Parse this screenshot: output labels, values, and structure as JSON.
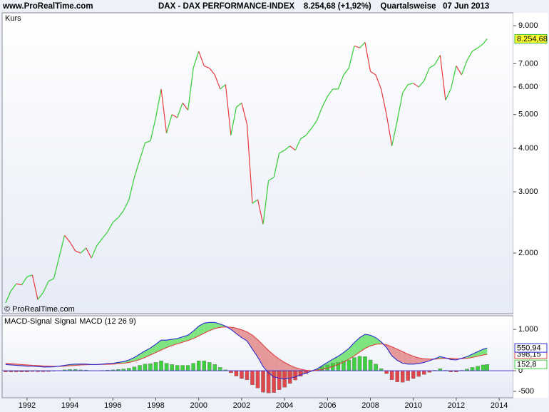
{
  "chart_data": [
    {
      "type": "line",
      "source": "www.ProRealTime.com",
      "title": "DAX - DAX PERFORMANCE-INDEX    8.254,68 (+1,92%)    Quartalsweise   07 Jun 2013",
      "watermark": "© ProRealTime.com",
      "log_scale": true,
      "xlim": [
        1990.84,
        2014.66
      ],
      "ylim": [
        1340,
        9800
      ],
      "yticks": [
        {
          "value": 2000,
          "label": "2.000"
        },
        {
          "value": 3000,
          "label": "3.000"
        },
        {
          "value": 4000,
          "label": "4.000"
        },
        {
          "value": 5000,
          "label": "5.000"
        },
        {
          "value": 6000,
          "label": "6.000"
        },
        {
          "value": 7000,
          "label": "7.000"
        },
        {
          "value": 9000,
          "label": "9.000"
        }
      ],
      "x": [
        1991,
        1991.25,
        1991.5,
        1991.75,
        1992,
        1992.25,
        1992.5,
        1992.75,
        1993,
        1993.25,
        1993.5,
        1993.75,
        1994,
        1994.25,
        1994.5,
        1994.75,
        1995,
        1995.25,
        1995.5,
        1995.75,
        1996,
        1996.25,
        1996.5,
        1996.75,
        1997,
        1997.25,
        1997.5,
        1997.75,
        1998,
        1998.25,
        1998.5,
        1998.75,
        1999,
        1999.25,
        1999.5,
        1999.75,
        2000,
        2000.25,
        2000.5,
        2000.75,
        2001,
        2001.25,
        2001.5,
        2001.75,
        2002,
        2002.25,
        2002.5,
        2002.75,
        2003,
        2003.25,
        2003.5,
        2003.75,
        2004,
        2004.25,
        2004.5,
        2004.75,
        2005,
        2005.25,
        2005.5,
        2005.75,
        2006,
        2006.25,
        2006.5,
        2006.75,
        2007,
        2007.25,
        2007.5,
        2007.75,
        2008,
        2008.25,
        2008.5,
        2008.75,
        2009,
        2009.25,
        2009.5,
        2009.75,
        2010,
        2010.25,
        2010.5,
        2010.75,
        2011,
        2011.25,
        2011.5,
        2011.75,
        2012,
        2012.25,
        2012.5,
        2012.75,
        2013,
        2013.25,
        2013.44
      ],
      "series": [
        {
          "name": "Kurs",
          "color": "#33bb33",
          "up_color": "#33cc33",
          "down_color": "#e8383d",
          "label_box_color": "#ffff33",
          "values": [
            1437,
            1557,
            1633,
            1620,
            1710,
            1730,
            1470,
            1540,
            1660,
            1690,
            1950,
            2250,
            2150,
            2030,
            2000,
            2070,
            1935,
            2100,
            2200,
            2300,
            2450,
            2530,
            2650,
            2850,
            3300,
            3700,
            4150,
            4200,
            4900,
            5920,
            4420,
            5000,
            4900,
            5400,
            5150,
            6810,
            7600,
            6900,
            6800,
            6500,
            5920,
            6100,
            4360,
            5250,
            5400,
            4690,
            2780,
            2850,
            2420,
            3230,
            3300,
            3870,
            3950,
            4060,
            3950,
            4260,
            4360,
            4560,
            4800,
            5250,
            5640,
            5920,
            5920,
            6500,
            6810,
            7880,
            7770,
            8060,
            6650,
            6500,
            5920,
            5000,
            4060,
            4800,
            5770,
            6100,
            6150,
            6000,
            6250,
            6810,
            6960,
            7400,
            5500,
            5920,
            6900,
            6500,
            7150,
            7600,
            7770,
            7980,
            8254.68
          ],
          "value_labels": [
            null,
            null,
            null,
            null,
            null,
            null,
            null,
            null,
            null,
            null,
            null,
            null,
            null,
            null,
            null,
            null,
            null,
            null,
            null,
            null,
            null,
            null,
            null,
            null,
            null,
            null,
            null,
            null,
            null,
            null,
            null,
            null,
            null,
            null,
            null,
            null,
            null,
            null,
            null,
            null,
            null,
            null,
            null,
            null,
            null,
            null,
            null,
            null,
            null,
            null,
            null,
            null,
            null,
            null,
            null,
            null,
            null,
            null,
            null,
            null,
            null,
            null,
            null,
            null,
            null,
            null,
            null,
            null,
            null,
            null,
            null,
            null,
            null,
            null,
            null,
            null,
            null,
            null,
            null,
            null,
            null,
            null,
            null,
            null,
            null,
            null,
            null,
            null,
            null,
            null,
            "8.254,68"
          ]
        }
      ]
    },
    {
      "type": "combo",
      "xlim": [
        1990.84,
        2014.66
      ],
      "xticks": [
        1992,
        1994,
        1996,
        1998,
        2000,
        2002,
        2004,
        2006,
        2008,
        2010,
        2012,
        2014
      ],
      "ylim": [
        -655,
        1330
      ],
      "yticks": [
        {
          "value": 1000,
          "label": "1.000"
        },
        0,
        -500
      ],
      "fill_up": "#55dd55",
      "fill_down": "#e07a7a",
      "x": [
        1991,
        1991.25,
        1991.5,
        1991.75,
        1992,
        1992.25,
        1992.5,
        1992.75,
        1993,
        1993.25,
        1993.5,
        1993.75,
        1994,
        1994.25,
        1994.5,
        1994.75,
        1995,
        1995.25,
        1995.5,
        1995.75,
        1996,
        1996.25,
        1996.5,
        1996.75,
        1997,
        1997.25,
        1997.5,
        1997.75,
        1998,
        1998.25,
        1998.5,
        1998.75,
        1999,
        1999.25,
        1999.5,
        1999.75,
        2000,
        2000.25,
        2000.5,
        2000.75,
        2001,
        2001.25,
        2001.5,
        2001.75,
        2002,
        2002.25,
        2002.5,
        2002.75,
        2003,
        2003.25,
        2003.5,
        2003.75,
        2004,
        2004.25,
        2004.5,
        2004.75,
        2005,
        2005.25,
        2005.5,
        2005.75,
        2006,
        2006.25,
        2006.5,
        2006.75,
        2007,
        2007.25,
        2007.5,
        2007.75,
        2008,
        2008.25,
        2008.5,
        2008.75,
        2009,
        2009.25,
        2009.5,
        2009.75,
        2010,
        2010.25,
        2010.5,
        2010.75,
        2011,
        2011.25,
        2011.5,
        2011.75,
        2012,
        2012.25,
        2012.5,
        2012.75,
        2013,
        2013.25,
        2013.44
      ],
      "series": [
        {
          "name": "MACD-Signal",
          "type": "bar",
          "color": "#3fcf3f",
          "negative_color": "#e0474c",
          "values": [
            -30,
            -30,
            -30,
            -30,
            -30,
            -20,
            -25,
            -25,
            -20,
            -10,
            5,
            20,
            30,
            30,
            20,
            15,
            2,
            0,
            8,
            15,
            20,
            30,
            40,
            60,
            90,
            130,
            160,
            170,
            200,
            240,
            180,
            150,
            130,
            130,
            130,
            180,
            240,
            240,
            200,
            150,
            80,
            20,
            -50,
            -130,
            -190,
            -220,
            -340,
            -420,
            -520,
            -540,
            -530,
            -460,
            -400,
            -310,
            -225,
            -135,
            -70,
            -10,
            30,
            90,
            140,
            180,
            200,
            230,
            260,
            320,
            350,
            340,
            260,
            160,
            50,
            -70,
            -220,
            -270,
            -280,
            -240,
            -190,
            -140,
            -90,
            -40,
            10,
            50,
            10,
            -30,
            -30,
            10,
            40,
            80,
            110,
            140,
            152.8
          ],
          "value_labels": [
            null,
            null,
            null,
            null,
            null,
            null,
            null,
            null,
            null,
            null,
            null,
            null,
            null,
            null,
            null,
            null,
            null,
            null,
            null,
            null,
            null,
            null,
            null,
            null,
            null,
            null,
            null,
            null,
            null,
            null,
            null,
            null,
            null,
            null,
            null,
            null,
            null,
            null,
            null,
            null,
            null,
            null,
            null,
            null,
            null,
            null,
            null,
            null,
            null,
            null,
            null,
            null,
            null,
            null,
            null,
            null,
            null,
            null,
            null,
            null,
            null,
            null,
            null,
            null,
            null,
            null,
            null,
            null,
            null,
            null,
            null,
            null,
            null,
            null,
            null,
            null,
            null,
            null,
            null,
            null,
            null,
            null,
            null,
            null,
            null,
            null,
            null,
            null,
            null,
            null,
            "152,8"
          ]
        },
        {
          "name": "Signal",
          "type": "line",
          "color": "#e04040",
          "values": [
            180,
            170,
            160,
            150,
            140,
            130,
            125,
            115,
            110,
            105,
            105,
            110,
            120,
            130,
            140,
            145,
            148,
            150,
            152,
            155,
            160,
            170,
            180,
            200,
            230,
            270,
            320,
            380,
            440,
            500,
            560,
            610,
            650,
            690,
            730,
            780,
            840,
            910,
            970,
            1020,
            1050,
            1060,
            1050,
            1030,
            990,
            940,
            860,
            750,
            620,
            490,
            380,
            280,
            200,
            130,
            75,
            35,
            10,
            0,
            10,
            30,
            60,
            100,
            150,
            210,
            280,
            360,
            450,
            540,
            600,
            640,
            650,
            630,
            580,
            520,
            460,
            400,
            350,
            310,
            290,
            280,
            280,
            290,
            300,
            300,
            290,
            290,
            300,
            320,
            350,
            380,
            398.15
          ],
          "value_labels": [
            null,
            null,
            null,
            null,
            null,
            null,
            null,
            null,
            null,
            null,
            null,
            null,
            null,
            null,
            null,
            null,
            null,
            null,
            null,
            null,
            null,
            null,
            null,
            null,
            null,
            null,
            null,
            null,
            null,
            null,
            null,
            null,
            null,
            null,
            null,
            null,
            null,
            null,
            null,
            null,
            null,
            null,
            null,
            null,
            null,
            null,
            null,
            null,
            null,
            null,
            null,
            null,
            null,
            null,
            null,
            null,
            null,
            null,
            null,
            null,
            null,
            null,
            null,
            null,
            null,
            null,
            null,
            null,
            null,
            null,
            null,
            null,
            null,
            null,
            null,
            null,
            null,
            null,
            null,
            null,
            null,
            null,
            null,
            null,
            null,
            null,
            null,
            null,
            null,
            null,
            "398,15"
          ]
        },
        {
          "name": "MACD (12 26 9)",
          "type": "line",
          "color": "#2a2ad0",
          "values": [
            150,
            140,
            130,
            120,
            110,
            110,
            100,
            90,
            90,
            95,
            110,
            130,
            150,
            160,
            160,
            160,
            150,
            150,
            160,
            170,
            180,
            200,
            220,
            260,
            320,
            400,
            480,
            550,
            640,
            740,
            740,
            760,
            780,
            820,
            860,
            960,
            1080,
            1150,
            1170,
            1170,
            1130,
            1080,
            1000,
            900,
            800,
            720,
            520,
            330,
            100,
            -50,
            -150,
            -180,
            -200,
            -180,
            -150,
            -100,
            -60,
            -10,
            40,
            120,
            200,
            280,
            350,
            440,
            540,
            680,
            800,
            880,
            860,
            800,
            700,
            560,
            360,
            250,
            180,
            160,
            160,
            170,
            200,
            240,
            290,
            340,
            310,
            270,
            260,
            300,
            340,
            400,
            460,
            520,
            550.94
          ],
          "value_labels": [
            null,
            null,
            null,
            null,
            null,
            null,
            null,
            null,
            null,
            null,
            null,
            null,
            null,
            null,
            null,
            null,
            null,
            null,
            null,
            null,
            null,
            null,
            null,
            null,
            null,
            null,
            null,
            null,
            null,
            null,
            null,
            null,
            null,
            null,
            null,
            null,
            null,
            null,
            null,
            null,
            null,
            null,
            null,
            null,
            null,
            null,
            null,
            null,
            null,
            null,
            null,
            null,
            null,
            null,
            null,
            null,
            null,
            null,
            null,
            null,
            null,
            null,
            null,
            null,
            null,
            null,
            null,
            null,
            null,
            null,
            null,
            null,
            null,
            null,
            null,
            null,
            null,
            null,
            null,
            null,
            null,
            null,
            null,
            null,
            null,
            null,
            null,
            null,
            null,
            null,
            "550,94"
          ]
        }
      ]
    }
  ]
}
